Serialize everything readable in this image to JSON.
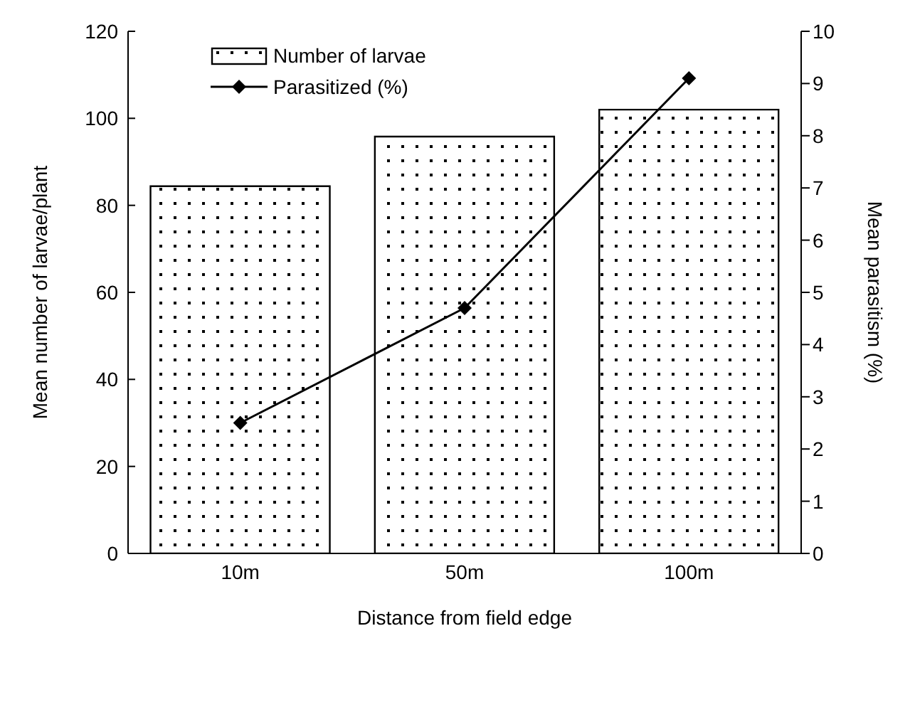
{
  "chart_data": {
    "type": "bar",
    "xlabel": "Distance from field edge",
    "ylabel": "Mean number of larvae/plant",
    "y2label": "Mean parasitism (%)",
    "categories": [
      "10m",
      "50m",
      "100m"
    ],
    "series": [
      {
        "name": "Number of larvae",
        "color": "#000000",
        "values": [
          84.4,
          95.8,
          102
        ]
      },
      {
        "name": "Parasitized (%)",
        "type": "line",
        "axis": "y2",
        "color": "#000000",
        "marker": "diamond",
        "values": [
          2.5,
          4.7,
          9.1
        ]
      }
    ],
    "ylim": [
      0,
      120
    ],
    "yticks": [
      0,
      20,
      40,
      60,
      80,
      100,
      120
    ],
    "y2lim": [
      0,
      10
    ],
    "y2ticks": [
      0,
      1,
      2,
      3,
      4,
      5,
      6,
      7,
      8,
      9,
      10
    ],
    "legend": "top left"
  }
}
